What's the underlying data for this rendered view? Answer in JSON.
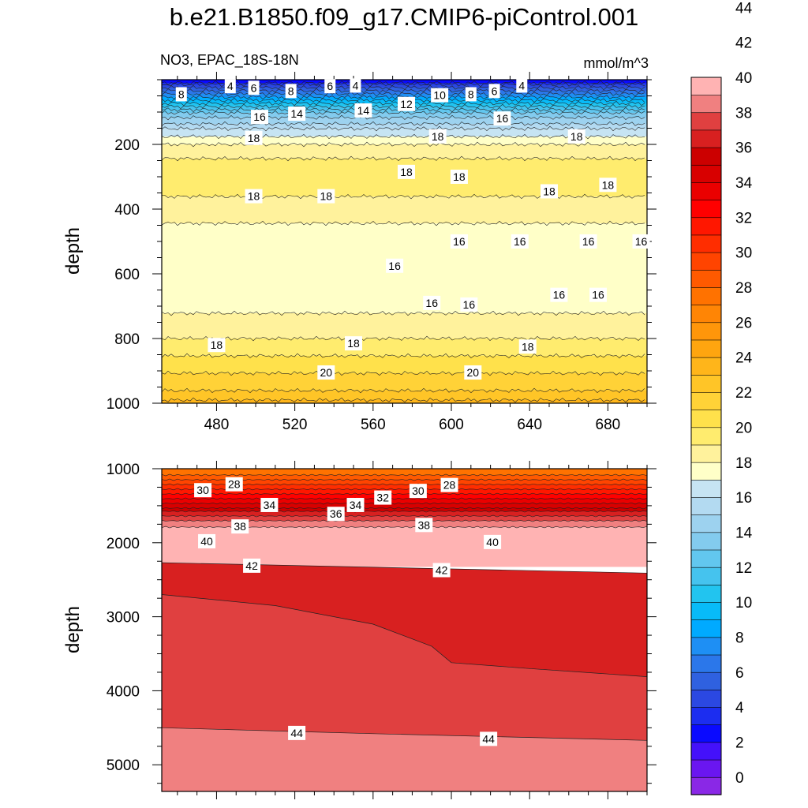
{
  "title": "b.e21.B1850.f09_g17.CMIP6-piControl.001",
  "chart_data": [
    {
      "type": "heatmap",
      "panel": "upper",
      "left_label": "NO3, EPAC_18S-18N",
      "right_label": "mmol/m^3",
      "ylabel": "depth",
      "xlabel": "",
      "xlim": [
        452,
        700
      ],
      "ylim": [
        1000,
        0
      ],
      "x_ticks": [
        480,
        520,
        560,
        600,
        640,
        680
      ],
      "y_ticks": [
        200,
        400,
        600,
        800,
        1000
      ],
      "depth_profile": [
        {
          "depth": 0,
          "value": 1
        },
        {
          "depth": 20,
          "value": 4
        },
        {
          "depth": 60,
          "value": 8
        },
        {
          "depth": 100,
          "value": 12
        },
        {
          "depth": 150,
          "value": 15
        },
        {
          "depth": 200,
          "value": 17
        },
        {
          "depth": 260,
          "value": 18.5
        },
        {
          "depth": 360,
          "value": 18
        },
        {
          "depth": 440,
          "value": 17
        },
        {
          "depth": 520,
          "value": 16
        },
        {
          "depth": 640,
          "value": 16
        },
        {
          "depth": 720,
          "value": 17
        },
        {
          "depth": 800,
          "value": 18
        },
        {
          "depth": 880,
          "value": 19.5
        },
        {
          "depth": 960,
          "value": 21
        },
        {
          "depth": 1000,
          "value": 22.5
        }
      ],
      "contour_labels": [
        {
          "x": 462,
          "depth": 45,
          "text": "8"
        },
        {
          "x": 487,
          "depth": 20,
          "text": "4"
        },
        {
          "x": 499,
          "depth": 25,
          "text": "6"
        },
        {
          "x": 518,
          "depth": 35,
          "text": "8"
        },
        {
          "x": 538,
          "depth": 20,
          "text": "6"
        },
        {
          "x": 551,
          "depth": 18,
          "text": "4"
        },
        {
          "x": 594,
          "depth": 48,
          "text": "10"
        },
        {
          "x": 610,
          "depth": 45,
          "text": "8"
        },
        {
          "x": 622,
          "depth": 35,
          "text": "6"
        },
        {
          "x": 636,
          "depth": 18,
          "text": "4"
        },
        {
          "x": 577,
          "depth": 75,
          "text": "12"
        },
        {
          "x": 555,
          "depth": 95,
          "text": "14"
        },
        {
          "x": 521,
          "depth": 105,
          "text": "14"
        },
        {
          "x": 502,
          "depth": 115,
          "text": "16"
        },
        {
          "x": 626,
          "depth": 120,
          "text": "16"
        },
        {
          "x": 499,
          "depth": 180,
          "text": "18"
        },
        {
          "x": 593,
          "depth": 175,
          "text": "18"
        },
        {
          "x": 664,
          "depth": 175,
          "text": "18"
        },
        {
          "x": 577,
          "depth": 285,
          "text": "18"
        },
        {
          "x": 604,
          "depth": 300,
          "text": "18"
        },
        {
          "x": 650,
          "depth": 345,
          "text": "18"
        },
        {
          "x": 680,
          "depth": 325,
          "text": "18"
        },
        {
          "x": 499,
          "depth": 360,
          "text": "18"
        },
        {
          "x": 536,
          "depth": 360,
          "text": "18"
        },
        {
          "x": 604,
          "depth": 500,
          "text": "16"
        },
        {
          "x": 635,
          "depth": 500,
          "text": "16"
        },
        {
          "x": 670,
          "depth": 500,
          "text": "16"
        },
        {
          "x": 697,
          "depth": 500,
          "text": "16"
        },
        {
          "x": 571,
          "depth": 575,
          "text": "16"
        },
        {
          "x": 590,
          "depth": 690,
          "text": "16"
        },
        {
          "x": 609,
          "depth": 695,
          "text": "16"
        },
        {
          "x": 655,
          "depth": 665,
          "text": "16"
        },
        {
          "x": 675,
          "depth": 665,
          "text": "16"
        },
        {
          "x": 480,
          "depth": 820,
          "text": "18"
        },
        {
          "x": 550,
          "depth": 815,
          "text": "18"
        },
        {
          "x": 639,
          "depth": 825,
          "text": "18"
        },
        {
          "x": 536,
          "depth": 905,
          "text": "20"
        },
        {
          "x": 611,
          "depth": 905,
          "text": "20"
        }
      ]
    },
    {
      "type": "heatmap",
      "panel": "lower",
      "ylabel": "depth",
      "xlabel": "",
      "xlim": [
        452,
        700
      ],
      "ylim": [
        5360,
        1000
      ],
      "y_ticks": [
        1000,
        2000,
        3000,
        4000,
        5000
      ],
      "depth_profile": [
        {
          "depth": 1000,
          "value": 26
        },
        {
          "depth": 1200,
          "value": 29
        },
        {
          "depth": 1450,
          "value": 33
        },
        {
          "depth": 1700,
          "value": 37
        },
        {
          "depth": 2000,
          "value": 40.5
        },
        {
          "depth": 2300,
          "value": 42
        }
      ],
      "boundaries": [
        {
          "level": 42,
          "x": [
            452,
            700
          ],
          "depth": [
            2270,
            2410
          ]
        },
        {
          "level": 43,
          "x": [
            452,
            510,
            560,
            590,
            600,
            640,
            700
          ],
          "depth": [
            2700,
            2850,
            3100,
            3400,
            3620,
            3700,
            3810
          ]
        },
        {
          "level": 44,
          "x": [
            452,
            560,
            700
          ],
          "depth": [
            4500,
            4580,
            4670
          ]
        }
      ],
      "contour_labels": [
        {
          "x": 473,
          "depth": 1290,
          "text": "30"
        },
        {
          "x": 489,
          "depth": 1210,
          "text": "28"
        },
        {
          "x": 507,
          "depth": 1490,
          "text": "34"
        },
        {
          "x": 541,
          "depth": 1610,
          "text": "36"
        },
        {
          "x": 551,
          "depth": 1490,
          "text": "34"
        },
        {
          "x": 565,
          "depth": 1390,
          "text": "32"
        },
        {
          "x": 583,
          "depth": 1300,
          "text": "30"
        },
        {
          "x": 599,
          "depth": 1220,
          "text": "28"
        },
        {
          "x": 492,
          "depth": 1780,
          "text": "38"
        },
        {
          "x": 586,
          "depth": 1760,
          "text": "38"
        },
        {
          "x": 475,
          "depth": 1980,
          "text": "40"
        },
        {
          "x": 621,
          "depth": 1990,
          "text": "40"
        },
        {
          "x": 498,
          "depth": 2310,
          "text": "42"
        },
        {
          "x": 595,
          "depth": 2370,
          "text": "42"
        },
        {
          "x": 521,
          "depth": 4570,
          "text": "44"
        },
        {
          "x": 619,
          "depth": 4650,
          "text": "44"
        }
      ]
    }
  ],
  "colorbar": {
    "labels": [
      "0",
      "2",
      "4",
      "6",
      "8",
      "10",
      "12",
      "14",
      "16",
      "18",
      "20",
      "22",
      "24",
      "26",
      "28",
      "30",
      "32",
      "34",
      "36",
      "38",
      "40",
      "42",
      "44"
    ],
    "colors": [
      "#8a28e6",
      "#6a16f0",
      "#4411fa",
      "#0a0aff",
      "#1c2df0",
      "#2b48e2",
      "#2f61e0",
      "#2b77ea",
      "#1e8ff4",
      "#00aaff",
      "#08bbf8",
      "#22c4ef",
      "#45c3ee",
      "#62c7ef",
      "#83cbee",
      "#9dd2ef",
      "#b3daf1",
      "#c6e4f3",
      "#ffffc8",
      "#fff29c",
      "#ffec6e",
      "#ffe14b",
      "#ffd237",
      "#ffc527",
      "#ffb51a",
      "#ffa50f",
      "#ff960a",
      "#ff8505",
      "#ff7200",
      "#ff5a00",
      "#ff4400",
      "#ff2d00",
      "#ff1700",
      "#ff0000",
      "#ea0000",
      "#d80000",
      "#cc0000",
      "#d82020",
      "#e04040",
      "#f08080",
      "#ffb3b3"
    ]
  }
}
